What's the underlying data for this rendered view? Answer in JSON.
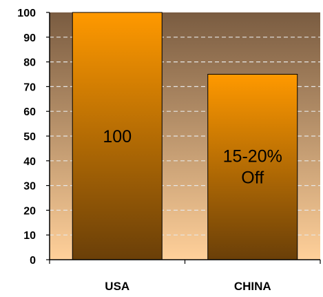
{
  "chart_data": {
    "type": "bar",
    "title": "",
    "xlabel": "",
    "ylabel": "",
    "categories": [
      "USA",
      "CHINA"
    ],
    "values": [
      100,
      75
    ],
    "data_labels": [
      [
        "100"
      ],
      [
        "15-20%",
        "Off"
      ]
    ],
    "ylim": [
      0,
      100
    ],
    "yticks": [
      0,
      10,
      20,
      30,
      40,
      50,
      60,
      70,
      80,
      90,
      100
    ],
    "grid": "horizontal dashed",
    "colors": {
      "plot_top": "#7a5c41",
      "plot_bottom": "#ffd09a",
      "bar_top": "#ff9900",
      "bar_bottom": "#6a3f08",
      "gridline": "#e6e6e6"
    }
  }
}
